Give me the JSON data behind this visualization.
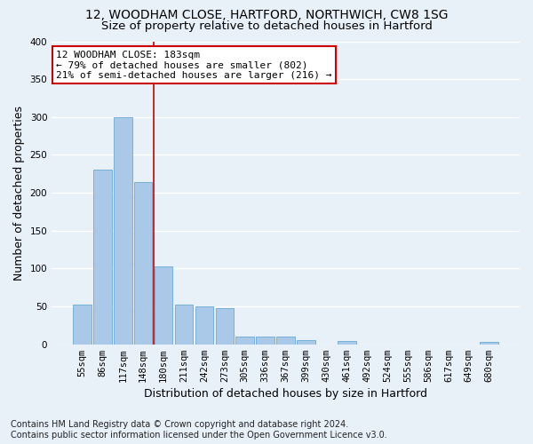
{
  "title1": "12, WOODHAM CLOSE, HARTFORD, NORTHWICH, CW8 1SG",
  "title2": "Size of property relative to detached houses in Hartford",
  "xlabel": "Distribution of detached houses by size in Hartford",
  "ylabel": "Number of detached properties",
  "footnote": "Contains HM Land Registry data © Crown copyright and database right 2024.\nContains public sector information licensed under the Open Government Licence v3.0.",
  "bar_labels": [
    "55sqm",
    "86sqm",
    "117sqm",
    "148sqm",
    "180sqm",
    "211sqm",
    "242sqm",
    "273sqm",
    "305sqm",
    "336sqm",
    "367sqm",
    "399sqm",
    "430sqm",
    "461sqm",
    "492sqm",
    "524sqm",
    "555sqm",
    "586sqm",
    "617sqm",
    "649sqm",
    "680sqm"
  ],
  "bar_values": [
    52,
    231,
    300,
    214,
    103,
    52,
    50,
    48,
    10,
    10,
    10,
    5,
    0,
    4,
    0,
    0,
    0,
    0,
    0,
    0,
    3
  ],
  "bar_color": "#aac9e8",
  "bar_edge_color": "#6aaad4",
  "background_color": "#e8f0f8",
  "grid_color": "#ffffff",
  "vline_color": "#cc0000",
  "annotation_line1": "12 WOODHAM CLOSE: 183sqm",
  "annotation_line2": "← 79% of detached houses are smaller (802)",
  "annotation_line3": "21% of semi-detached houses are larger (216) →",
  "annotation_box_color": "#ffffff",
  "annotation_box_edge_color": "#cc0000",
  "ylim": [
    0,
    400
  ],
  "yticks": [
    0,
    50,
    100,
    150,
    200,
    250,
    300,
    350,
    400
  ],
  "title_fontsize": 10,
  "subtitle_fontsize": 9.5,
  "axis_label_fontsize": 9,
  "tick_fontsize": 7.5,
  "annotation_fontsize": 8,
  "footnote_fontsize": 7
}
